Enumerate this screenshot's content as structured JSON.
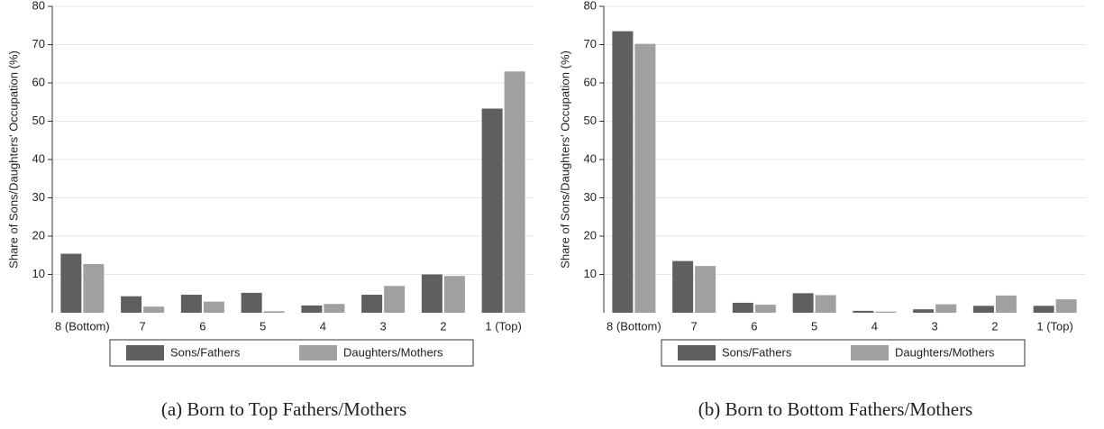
{
  "chart_data": [
    {
      "type": "bar",
      "caption": "(a) Born to Top Fathers/Mothers",
      "y_label": "Share of Sons/Daughters' Occupation (%)",
      "categories": [
        "8 (Bottom)",
        "7",
        "6",
        "5",
        "4",
        "3",
        "2",
        "1 (Top)"
      ],
      "series": [
        {
          "name": "Sons/Fathers",
          "color": "#5f5f5f",
          "values": [
            15.4,
            4.3,
            4.7,
            5.2,
            1.9,
            4.7,
            10.0,
            53.3
          ]
        },
        {
          "name": "Daughters/Mothers",
          "color": "#a0a0a0",
          "values": [
            12.7,
            1.6,
            2.9,
            0.4,
            2.3,
            7.0,
            9.6,
            63.0
          ]
        }
      ],
      "ylim": [
        0,
        80
      ],
      "yticks": [
        10,
        20,
        30,
        40,
        50,
        60,
        70,
        80
      ],
      "grid": true
    },
    {
      "type": "bar",
      "caption": "(b) Born to Bottom Fathers/Mothers",
      "y_label": "Share of Sons/Daughters' Occupation (%)",
      "categories": [
        "8 (Bottom)",
        "7",
        "6",
        "5",
        "4",
        "3",
        "2",
        "1 (Top)"
      ],
      "series": [
        {
          "name": "Sons/Fathers",
          "color": "#5f5f5f",
          "values": [
            73.5,
            13.5,
            2.6,
            5.1,
            0.5,
            0.9,
            1.8,
            1.8
          ]
        },
        {
          "name": "Daughters/Mothers",
          "color": "#a0a0a0",
          "values": [
            70.2,
            12.2,
            2.1,
            4.6,
            0.3,
            2.2,
            4.5,
            3.5
          ]
        }
      ],
      "ylim": [
        0,
        80
      ],
      "yticks": [
        10,
        20,
        30,
        40,
        50,
        60,
        70,
        80
      ],
      "grid": true
    }
  ]
}
